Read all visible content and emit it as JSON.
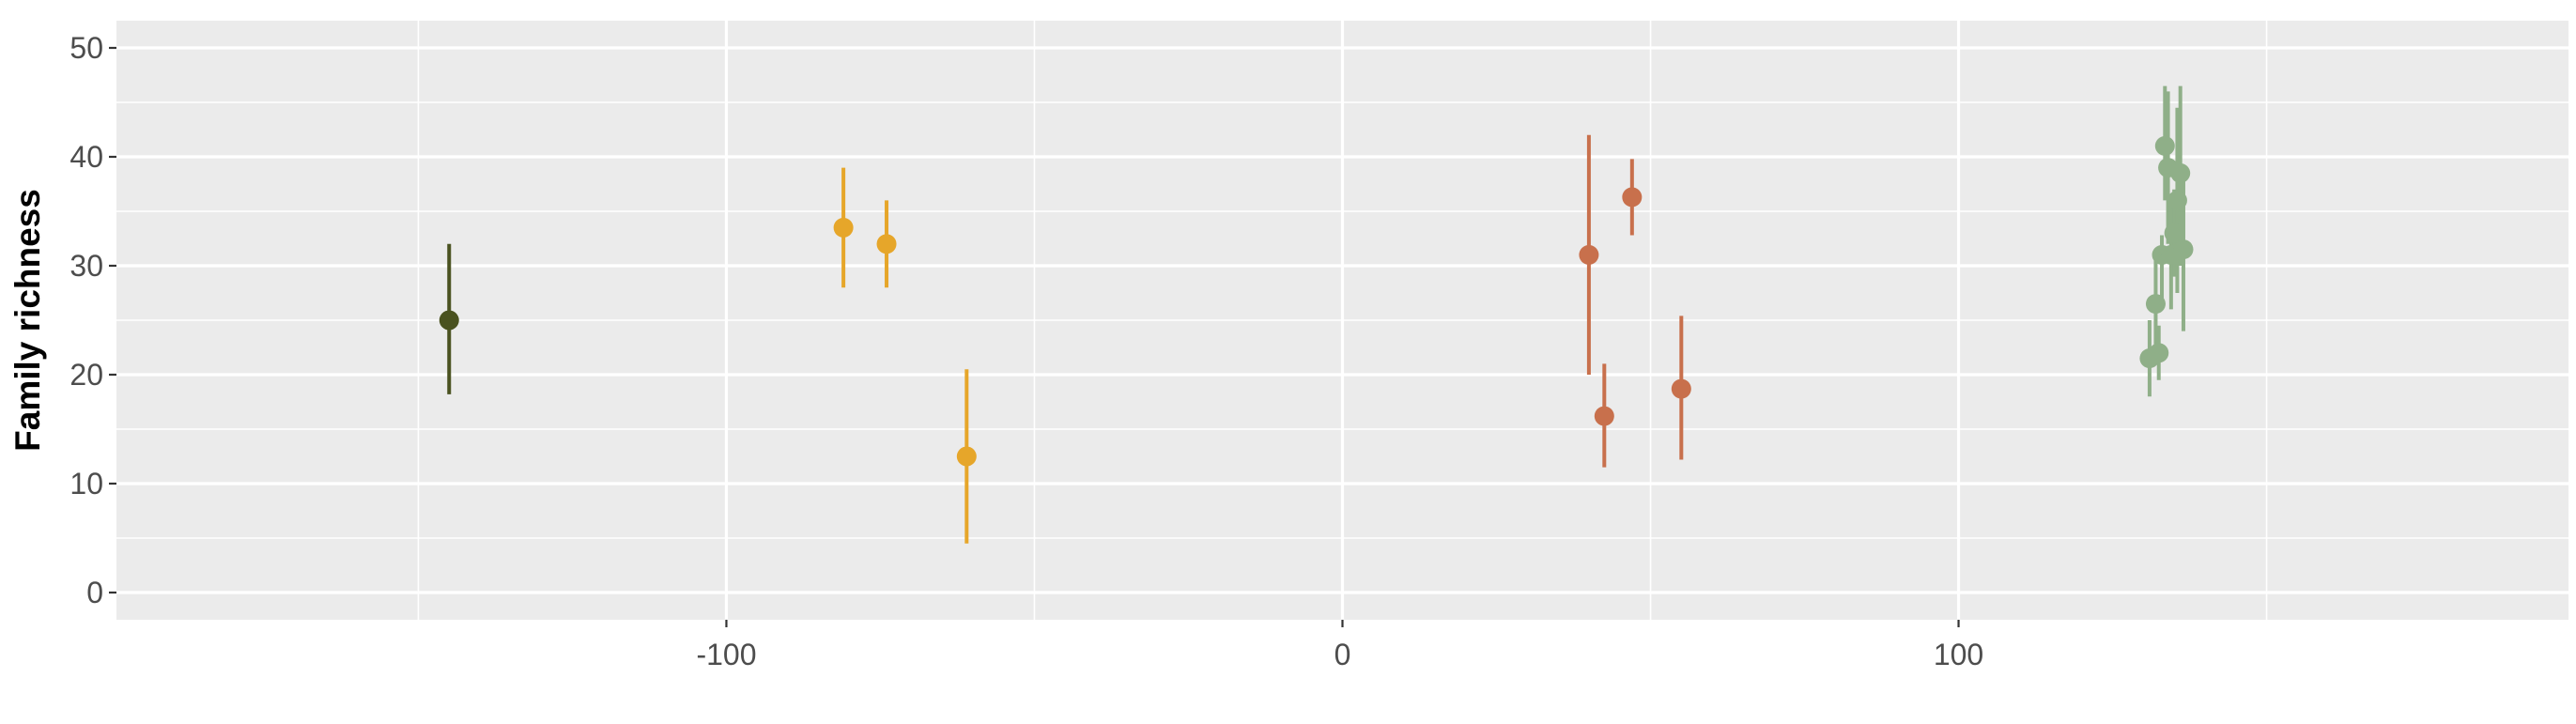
{
  "chart_data": {
    "type": "scatter",
    "title": "",
    "xlabel": "",
    "ylabel": "Family richness",
    "xlim": [
      -199,
      199
    ],
    "ylim": [
      -2.5,
      52.5
    ],
    "x_ticks": [
      -100,
      0,
      100
    ],
    "x_tick_labels": [
      "-100",
      "0",
      "100"
    ],
    "y_ticks": [
      0,
      10,
      20,
      30,
      40,
      50
    ],
    "y_tick_labels": [
      "0",
      "10",
      "20",
      "30",
      "40",
      "50"
    ],
    "grid": true,
    "legend": "none",
    "series": [
      {
        "color": "#4a5220",
        "points": [
          {
            "x": -145,
            "y": 25,
            "ymin": 18.2,
            "ymax": 32
          }
        ]
      },
      {
        "color": "#e6a62a",
        "points": [
          {
            "x": -81,
            "y": 33.5,
            "ymin": 28,
            "ymax": 39
          },
          {
            "x": -74,
            "y": 32,
            "ymin": 28,
            "ymax": 36
          },
          {
            "x": -61,
            "y": 12.5,
            "ymin": 4.5,
            "ymax": 20.5
          }
        ]
      },
      {
        "color": "#c8704c",
        "points": [
          {
            "x": 40,
            "y": 31,
            "ymin": 20,
            "ymax": 42
          },
          {
            "x": 42.5,
            "y": 16.2,
            "ymin": 11.5,
            "ymax": 21
          },
          {
            "x": 47,
            "y": 36.3,
            "ymin": 32.8,
            "ymax": 39.8
          },
          {
            "x": 55,
            "y": 18.7,
            "ymin": 12.2,
            "ymax": 25.4
          }
        ]
      },
      {
        "color": "#8faf88",
        "points": [
          {
            "x": 131,
            "y": 21.5,
            "ymin": 18,
            "ymax": 25
          },
          {
            "x": 132,
            "y": 26.5,
            "ymin": 22.2,
            "ymax": 30.8
          },
          {
            "x": 132.5,
            "y": 22,
            "ymin": 19.5,
            "ymax": 24.5
          },
          {
            "x": 133,
            "y": 31,
            "ymin": 26,
            "ymax": 32.8
          },
          {
            "x": 133.5,
            "y": 41,
            "ymin": 36,
            "ymax": 46.5
          },
          {
            "x": 134,
            "y": 39,
            "ymin": 32,
            "ymax": 46
          },
          {
            "x": 134.5,
            "y": 31,
            "ymin": 26,
            "ymax": 36
          },
          {
            "x": 135,
            "y": 33,
            "ymin": 29,
            "ymax": 37
          },
          {
            "x": 135.5,
            "y": 36,
            "ymin": 27.5,
            "ymax": 44.5
          },
          {
            "x": 136,
            "y": 38.5,
            "ymin": 30,
            "ymax": 46.5
          },
          {
            "x": 136.5,
            "y": 31.5,
            "ymin": 24,
            "ymax": 39
          }
        ]
      }
    ]
  }
}
